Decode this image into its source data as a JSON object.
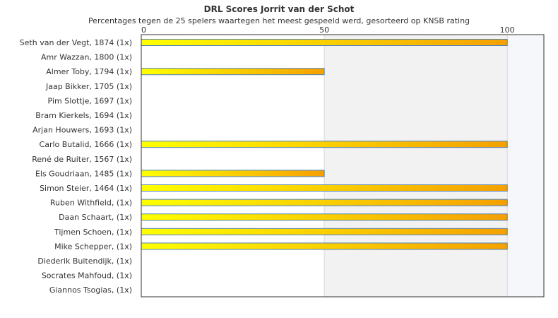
{
  "chart_data": {
    "type": "bar",
    "orientation": "horizontal",
    "title": "DRL Scores Jorrit van der Schot",
    "subtitle": "Percentages tegen de 25 spelers waartegen het meest gespeeld werd, gesorteerd op KNSB rating",
    "xlabel": "",
    "ylabel": "",
    "xlim": [
      0,
      110
    ],
    "x_ticks": [
      0,
      50,
      100
    ],
    "grid": true,
    "categories": [
      "Seth van der Vegt, 1874 (1x)",
      "Amr Wazzan, 1800 (1x)",
      "Almer Toby, 1794 (1x)",
      "Jaap Bikker, 1705 (1x)",
      "Pim Slottje, 1697 (1x)",
      "Bram Kierkels, 1694 (1x)",
      "Arjan Houwers, 1693 (1x)",
      "Carlo Butalid, 1666 (1x)",
      "René de Ruiter, 1567 (1x)",
      "Els Goudriaan, 1485 (1x)",
      "Simon Steier, 1464 (1x)",
      "Ruben Withfield,  (1x)",
      "Daan Schaart,  (1x)",
      "Tijmen Schoen,  (1x)",
      "Mike Schepper,  (1x)",
      "Diederik Buitendijk,  (1x)",
      "Socrates Mahfoud,  (1x)",
      "Giannos Tsogias,  (1x)"
    ],
    "values": [
      100,
      0,
      50,
      0,
      0,
      0,
      0,
      100,
      0,
      50,
      100,
      100,
      100,
      100,
      100,
      0,
      0,
      0
    ],
    "colors": {
      "bar_start": "#ffff00",
      "bar_end": "#f5a000",
      "bar_border": "#4f81bd",
      "band_shade": "#f2f2f2",
      "band_tail": "#f6f7fb",
      "plot_border": "#333333",
      "grid": "#d9d9d9"
    }
  }
}
